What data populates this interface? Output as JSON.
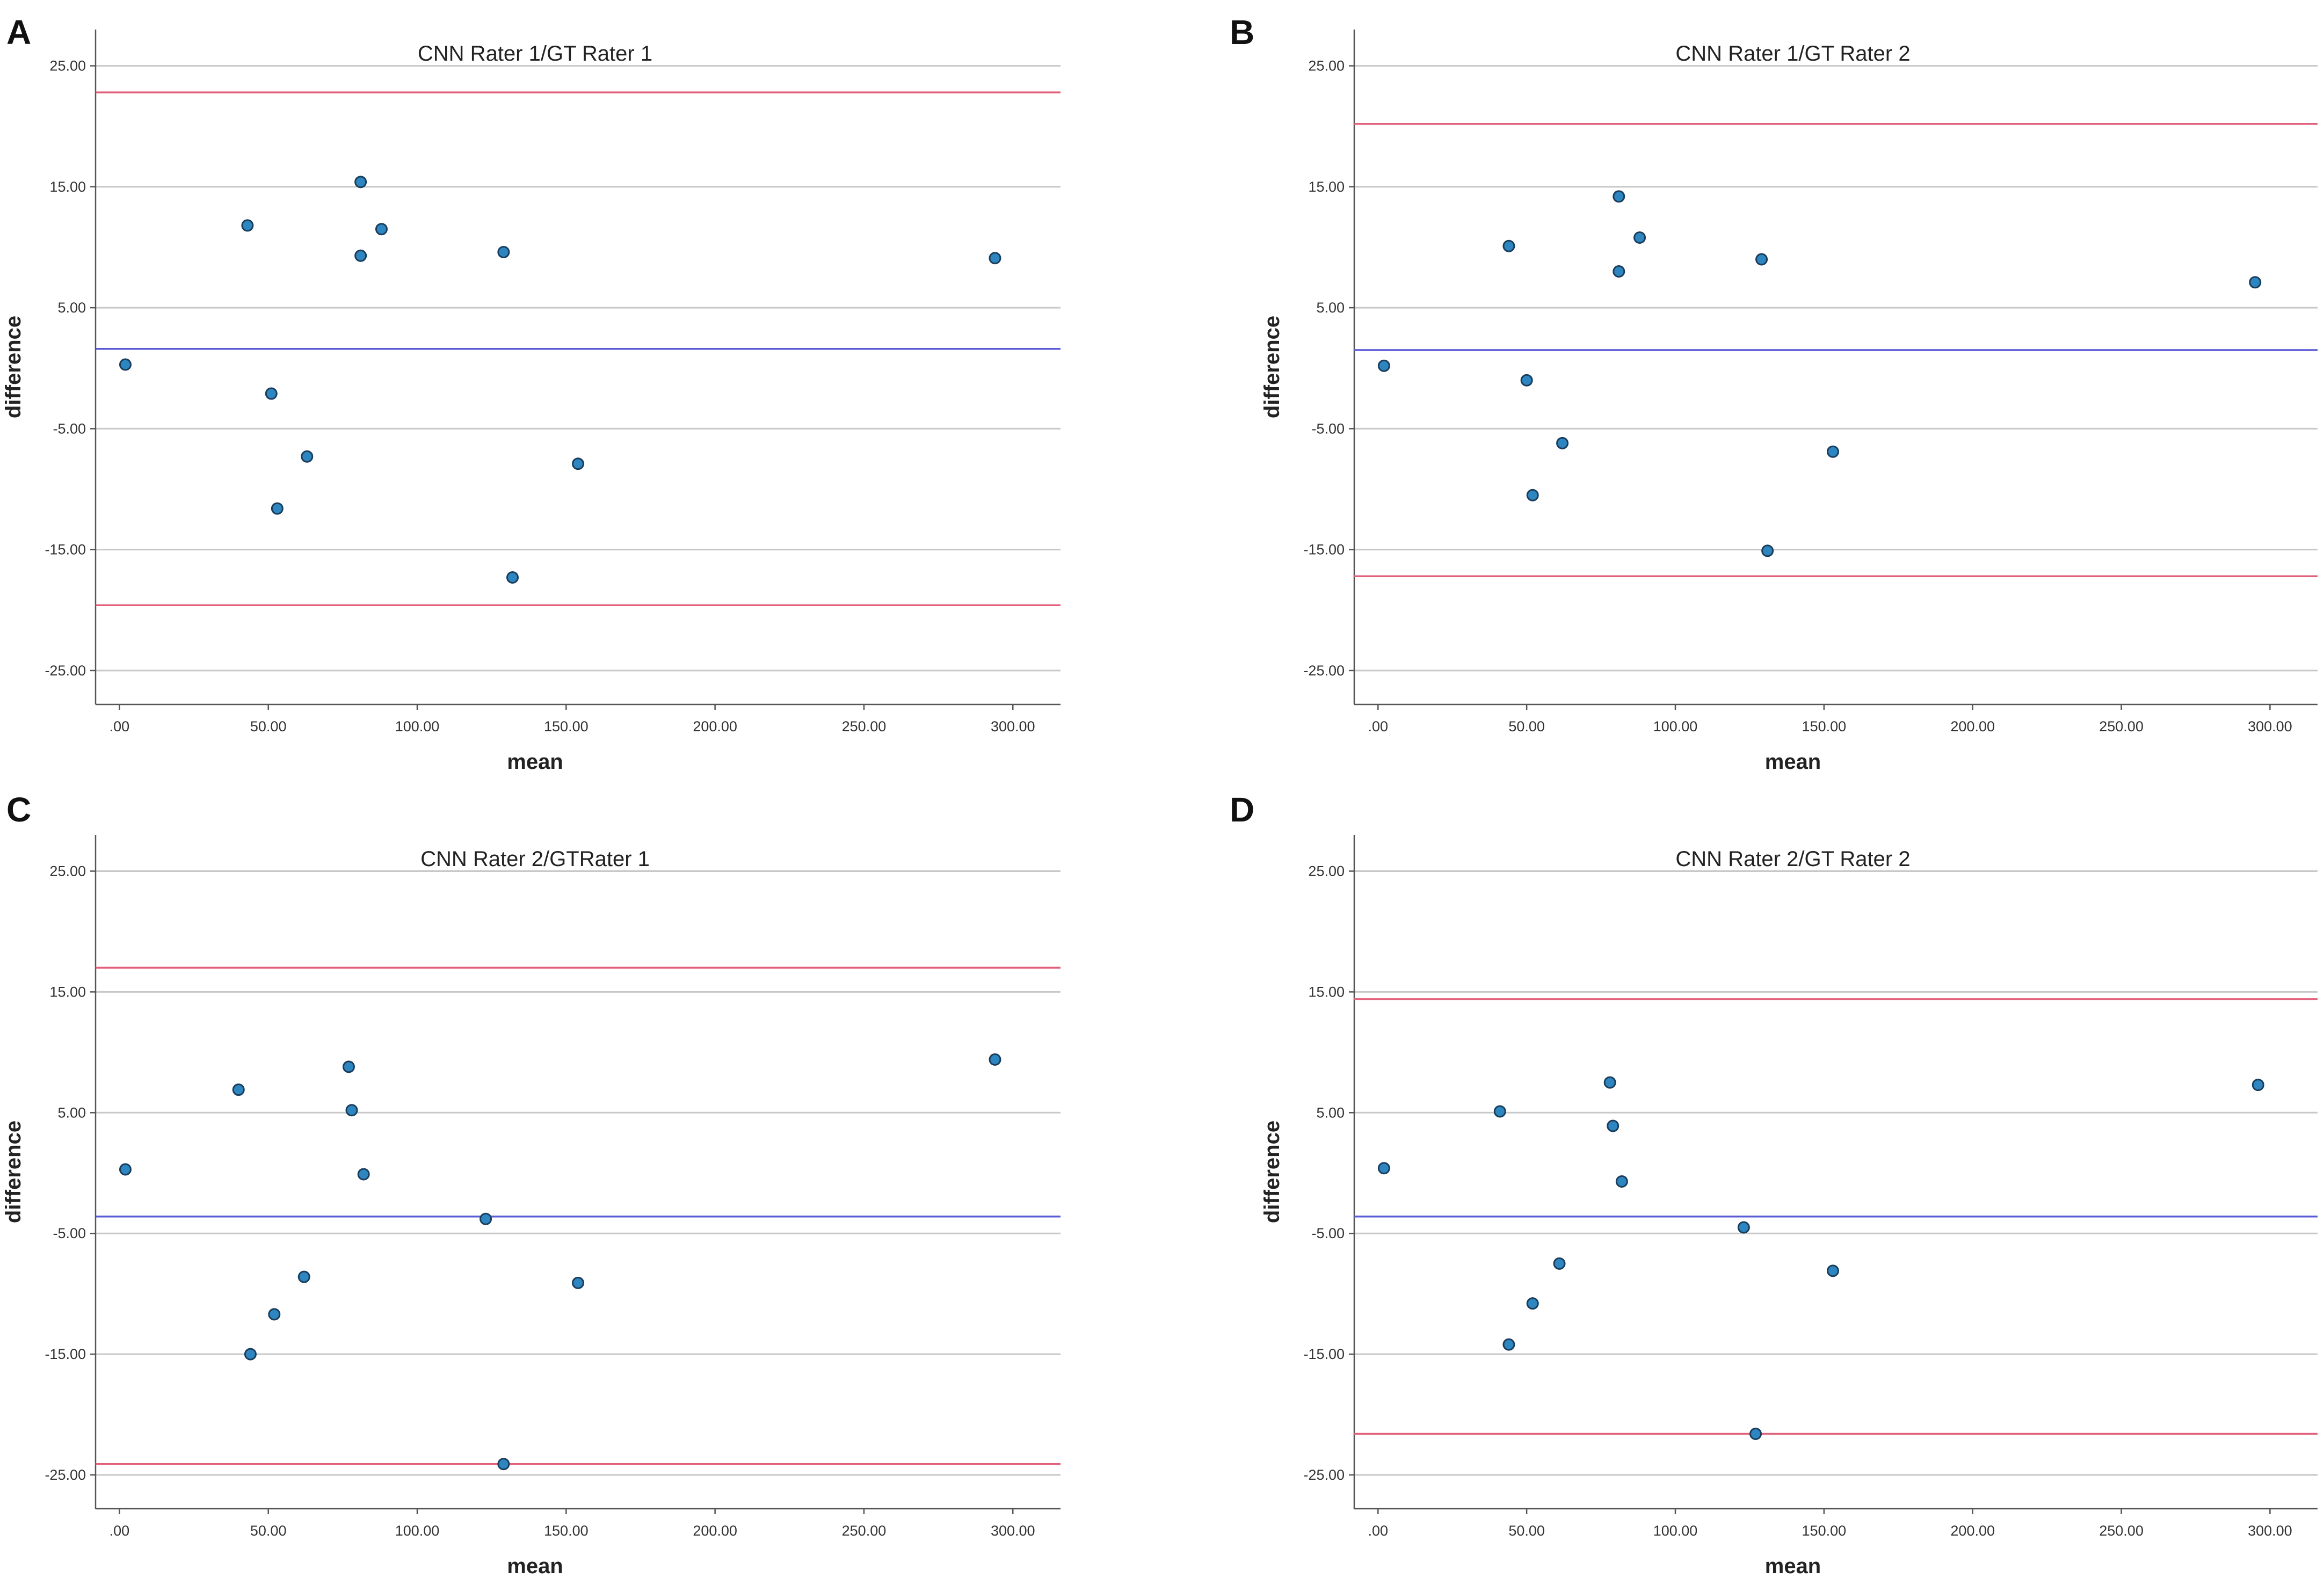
{
  "chart_data": [
    {
      "type": "scatter",
      "panel_letter": "A",
      "title": "CNN Rater 1/GT Rater 1",
      "xlabel": "mean",
      "ylabel": "difference",
      "x_ticks": [
        ".00",
        "50.00",
        "100.00",
        "150.00",
        "200.00",
        "250.00",
        "300.00"
      ],
      "y_ticks": [
        "25.00",
        "15.00",
        "5.00",
        "-5.00",
        "-15.00",
        "-25.00"
      ],
      "xlim": [
        -8,
        316
      ],
      "ylim": [
        -27.8,
        28
      ],
      "grid": true,
      "mean_line": 1.6,
      "upper_loa": 22.8,
      "lower_loa": -19.6,
      "points": [
        {
          "x": 2,
          "y": 0.3
        },
        {
          "x": 43,
          "y": 11.8
        },
        {
          "x": 51,
          "y": -2.1
        },
        {
          "x": 53,
          "y": -11.6
        },
        {
          "x": 63,
          "y": -7.3
        },
        {
          "x": 81,
          "y": 15.4
        },
        {
          "x": 81,
          "y": 9.3
        },
        {
          "x": 88,
          "y": 11.5
        },
        {
          "x": 129,
          "y": 9.6
        },
        {
          "x": 132,
          "y": -17.3
        },
        {
          "x": 154,
          "y": -7.9
        },
        {
          "x": 294,
          "y": 9.1
        }
      ]
    },
    {
      "type": "scatter",
      "panel_letter": "B",
      "title": "CNN Rater 1/GT Rater 2",
      "xlabel": "mean",
      "ylabel": "difference",
      "x_ticks": [
        ".00",
        "50.00",
        "100.00",
        "150.00",
        "200.00",
        "250.00",
        "300.00"
      ],
      "y_ticks": [
        "25.00",
        "15.00",
        "5.00",
        "-5.00",
        "-15.00",
        "-25.00"
      ],
      "xlim": [
        -8,
        316
      ],
      "ylim": [
        -27.8,
        28
      ],
      "grid": true,
      "mean_line": 1.5,
      "upper_loa": 20.2,
      "lower_loa": -17.2,
      "points": [
        {
          "x": 2,
          "y": 0.2
        },
        {
          "x": 44,
          "y": 10.1
        },
        {
          "x": 50,
          "y": -1.0
        },
        {
          "x": 52,
          "y": -10.5
        },
        {
          "x": 62,
          "y": -6.2
        },
        {
          "x": 81,
          "y": 14.2
        },
        {
          "x": 81,
          "y": 8.0
        },
        {
          "x": 88,
          "y": 10.8
        },
        {
          "x": 129,
          "y": 9.0
        },
        {
          "x": 131,
          "y": -15.1
        },
        {
          "x": 153,
          "y": -6.9
        },
        {
          "x": 295,
          "y": 7.1
        }
      ]
    },
    {
      "type": "scatter",
      "panel_letter": "C",
      "title": "CNN Rater 2/GTRater 1",
      "xlabel": "mean",
      "ylabel": "difference",
      "x_ticks": [
        ".00",
        "50.00",
        "100.00",
        "150.00",
        "200.00",
        "250.00",
        "300.00"
      ],
      "y_ticks": [
        "25.00",
        "15.00",
        "5.00",
        "-5.00",
        "-15.00",
        "-25.00"
      ],
      "xlim": [
        -8,
        316
      ],
      "ylim": [
        -27.8,
        28
      ],
      "grid": true,
      "mean_line": -3.6,
      "upper_loa": 17.0,
      "lower_loa": -24.1,
      "points": [
        {
          "x": 2,
          "y": 0.3
        },
        {
          "x": 40,
          "y": 6.9
        },
        {
          "x": 44,
          "y": -15.0
        },
        {
          "x": 52,
          "y": -11.7
        },
        {
          "x": 62,
          "y": -8.6
        },
        {
          "x": 77,
          "y": 8.8
        },
        {
          "x": 78,
          "y": 5.2
        },
        {
          "x": 82,
          "y": -0.1
        },
        {
          "x": 123,
          "y": -3.8
        },
        {
          "x": 129,
          "y": -24.1
        },
        {
          "x": 154,
          "y": -9.1
        },
        {
          "x": 294,
          "y": 9.4
        }
      ]
    },
    {
      "type": "scatter",
      "panel_letter": "D",
      "title": "CNN Rater 2/GT Rater 2",
      "xlabel": "mean",
      "ylabel": "difference",
      "x_ticks": [
        ".00",
        "50.00",
        "100.00",
        "150.00",
        "200.00",
        "250.00",
        "300.00"
      ],
      "y_ticks": [
        "25.00",
        "15.00",
        "5.00",
        "-5.00",
        "-15.00",
        "-25.00"
      ],
      "xlim": [
        -8,
        316
      ],
      "ylim": [
        -27.8,
        28
      ],
      "grid": true,
      "mean_line": -3.6,
      "upper_loa": 14.4,
      "lower_loa": -21.6,
      "points": [
        {
          "x": 2,
          "y": 0.4
        },
        {
          "x": 41,
          "y": 5.1
        },
        {
          "x": 44,
          "y": -14.2
        },
        {
          "x": 52,
          "y": -10.8
        },
        {
          "x": 61,
          "y": -7.5
        },
        {
          "x": 78,
          "y": 7.5
        },
        {
          "x": 79,
          "y": 3.9
        },
        {
          "x": 82,
          "y": -0.7
        },
        {
          "x": 123,
          "y": -4.5
        },
        {
          "x": 127,
          "y": -21.6
        },
        {
          "x": 153,
          "y": -8.1
        },
        {
          "x": 296,
          "y": 7.3
        }
      ]
    }
  ],
  "colors": {
    "mean_line": "#5a5ad6",
    "loa_line": "#e0607a",
    "point_fill": "#2e86c1",
    "point_stroke": "#1a3d5c"
  }
}
